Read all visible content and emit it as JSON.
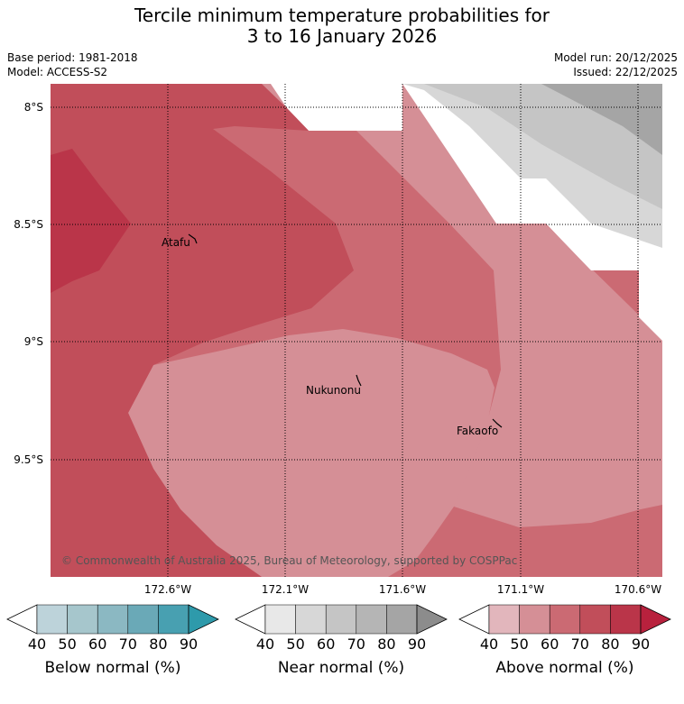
{
  "title": {
    "line1": "Tercile minimum temperature probabilities for",
    "line2": "3 to 16 January 2026"
  },
  "meta": {
    "base_period": "Base period: 1981-2018",
    "model": "Model: ACCESS-S2",
    "model_run": "Model run: 20/12/2025",
    "issued": "Issued: 22/12/2025"
  },
  "map": {
    "lat_labels": [
      "8°S",
      "8.5°S",
      "9°S",
      "9.5°S"
    ],
    "lon_labels": [
      "172.6°W",
      "172.1°W",
      "171.6°W",
      "171.1°W",
      "170.6°W"
    ],
    "places": [
      "Atafu",
      "Nukunonu",
      "Fakaofo"
    ],
    "copyright": "© Commonwealth of Australia 2025, Bureau of Meteorology, supported by COSPPac"
  },
  "colorbars": [
    {
      "label": "Below normal (%)",
      "ticks": [
        "40",
        "50",
        "60",
        "70",
        "80",
        "90"
      ],
      "colors": [
        "#ffffff",
        "#bdd3da",
        "#a6c6cc",
        "#8bb8c2",
        "#6aa9b7",
        "#48a0b1",
        "#2e9aab"
      ]
    },
    {
      "label": "Near normal (%)",
      "ticks": [
        "40",
        "50",
        "60",
        "70",
        "80",
        "90"
      ],
      "colors": [
        "#ffffff",
        "#e8e8e8",
        "#d7d7d7",
        "#c5c5c5",
        "#b5b5b5",
        "#a5a5a5",
        "#8c8c8c"
      ]
    },
    {
      "label": "Above normal (%)",
      "ticks": [
        "40",
        "50",
        "60",
        "70",
        "80",
        "90"
      ],
      "colors": [
        "#ffffff",
        "#e2b6bc",
        "#d58f96",
        "#cb6a73",
        "#c14e5a",
        "#ba3549",
        "#b8213d"
      ]
    }
  ]
}
